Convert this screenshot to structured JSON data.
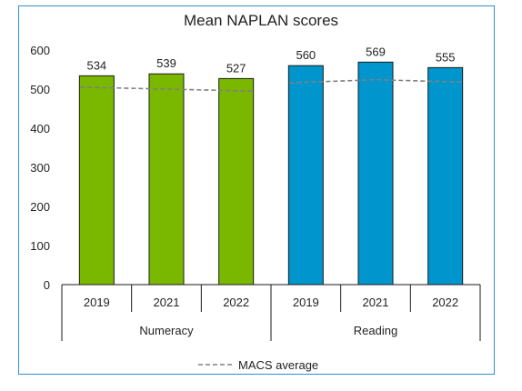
{
  "chart_data": {
    "type": "bar",
    "title": "Mean NAPLAN scores",
    "ylim": [
      0,
      600
    ],
    "yticks": [
      0,
      100,
      200,
      300,
      400,
      500,
      600
    ],
    "groups": [
      {
        "label": "Numeracy",
        "color": "#7ab800",
        "categories": [
          "2019",
          "2021",
          "2022"
        ],
        "values": [
          534,
          539,
          527
        ],
        "macs_average": [
          505,
          500,
          495
        ]
      },
      {
        "label": "Reading",
        "color": "#0095cd",
        "categories": [
          "2019",
          "2021",
          "2022"
        ],
        "values": [
          560,
          569,
          555
        ],
        "macs_average": [
          516,
          524,
          518
        ]
      }
    ],
    "legend": {
      "position": "bottom",
      "entries": [
        {
          "label": "MACS average",
          "style": "dashed-line",
          "color": "#808080"
        }
      ]
    },
    "grid": false
  }
}
